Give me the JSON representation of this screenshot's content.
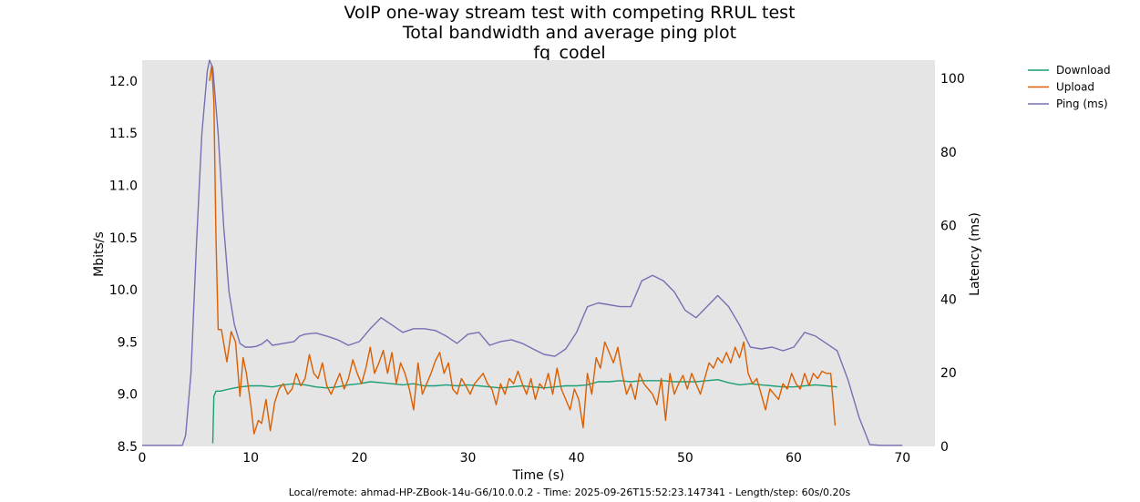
{
  "chart_data": {
    "type": "line",
    "title_lines": [
      "VoIP one-way stream test with competing RRUL test",
      "Total bandwidth and average ping plot",
      "fq_codel"
    ],
    "xlabel": "Time (s)",
    "ylabel": "Mbits/s",
    "y2label": "Latency (ms)",
    "xlim": [
      0,
      73
    ],
    "ylim": [
      8.5,
      12.2
    ],
    "y2lim": [
      0,
      105
    ],
    "xticks": [
      0,
      10,
      20,
      30,
      40,
      50,
      60,
      70
    ],
    "yticks": [
      8.5,
      9.0,
      9.5,
      10.0,
      10.5,
      11.0,
      11.5,
      12.0
    ],
    "y2ticks": [
      0,
      20,
      40,
      60,
      80,
      100
    ],
    "grid": false,
    "background": "#e5e5e5",
    "legend_position": "outside-top-right",
    "series": [
      {
        "name": "Download",
        "axis": "left",
        "color": "#1b9e77",
        "points": [
          [
            6.5,
            8.53
          ],
          [
            6.6,
            8.98
          ],
          [
            6.8,
            9.03
          ],
          [
            7.2,
            9.03
          ],
          [
            8,
            9.05
          ],
          [
            9,
            9.07
          ],
          [
            10,
            9.08
          ],
          [
            11,
            9.08
          ],
          [
            12,
            9.07
          ],
          [
            13,
            9.09
          ],
          [
            14,
            9.1
          ],
          [
            15,
            9.09
          ],
          [
            16,
            9.07
          ],
          [
            17,
            9.06
          ],
          [
            18,
            9.07
          ],
          [
            19,
            9.09
          ],
          [
            20,
            9.1
          ],
          [
            21,
            9.12
          ],
          [
            22,
            9.11
          ],
          [
            23,
            9.1
          ],
          [
            24,
            9.09
          ],
          [
            25,
            9.1
          ],
          [
            26,
            9.08
          ],
          [
            27,
            9.08
          ],
          [
            28,
            9.09
          ],
          [
            29,
            9.08
          ],
          [
            30,
            9.09
          ],
          [
            31,
            9.08
          ],
          [
            32,
            9.07
          ],
          [
            33,
            9.06
          ],
          [
            34,
            9.07
          ],
          [
            35,
            9.08
          ],
          [
            36,
            9.07
          ],
          [
            37,
            9.06
          ],
          [
            38,
            9.07
          ],
          [
            39,
            9.08
          ],
          [
            40,
            9.08
          ],
          [
            41,
            9.09
          ],
          [
            42,
            9.12
          ],
          [
            43,
            9.12
          ],
          [
            44,
            9.13
          ],
          [
            45,
            9.12
          ],
          [
            46,
            9.13
          ],
          [
            47,
            9.13
          ],
          [
            48,
            9.13
          ],
          [
            49,
            9.12
          ],
          [
            50,
            9.12
          ],
          [
            51,
            9.12
          ],
          [
            52,
            9.13
          ],
          [
            53,
            9.14
          ],
          [
            54,
            9.11
          ],
          [
            55,
            9.09
          ],
          [
            56,
            9.1
          ],
          [
            57,
            9.09
          ],
          [
            58,
            9.08
          ],
          [
            59,
            9.07
          ],
          [
            60,
            9.07
          ],
          [
            61,
            9.08
          ],
          [
            62,
            9.09
          ],
          [
            63,
            9.08
          ],
          [
            64,
            9.07
          ]
        ]
      },
      {
        "name": "Upload",
        "axis": "left",
        "color": "#d95f02",
        "points": [
          [
            6.2,
            12.0
          ],
          [
            6.4,
            12.15
          ],
          [
            6.6,
            11.8
          ],
          [
            6.8,
            10.5
          ],
          [
            7.0,
            9.62
          ],
          [
            7.3,
            9.62
          ],
          [
            7.6,
            9.43
          ],
          [
            7.8,
            9.31
          ],
          [
            8.2,
            9.6
          ],
          [
            8.6,
            9.5
          ],
          [
            9.0,
            8.98
          ],
          [
            9.3,
            9.35
          ],
          [
            9.6,
            9.2
          ],
          [
            10.0,
            8.9
          ],
          [
            10.3,
            8.62
          ],
          [
            10.7,
            8.75
          ],
          [
            11.0,
            8.72
          ],
          [
            11.4,
            8.95
          ],
          [
            11.8,
            8.65
          ],
          [
            12.2,
            8.92
          ],
          [
            12.6,
            9.05
          ],
          [
            13.0,
            9.1
          ],
          [
            13.4,
            9.0
          ],
          [
            13.8,
            9.05
          ],
          [
            14.2,
            9.2
          ],
          [
            14.6,
            9.08
          ],
          [
            15.0,
            9.15
          ],
          [
            15.4,
            9.38
          ],
          [
            15.8,
            9.2
          ],
          [
            16.2,
            9.15
          ],
          [
            16.6,
            9.3
          ],
          [
            17.0,
            9.08
          ],
          [
            17.4,
            9.0
          ],
          [
            17.8,
            9.1
          ],
          [
            18.2,
            9.2
          ],
          [
            18.6,
            9.05
          ],
          [
            19.0,
            9.15
          ],
          [
            19.4,
            9.33
          ],
          [
            19.8,
            9.2
          ],
          [
            20.2,
            9.1
          ],
          [
            20.6,
            9.25
          ],
          [
            21.0,
            9.45
          ],
          [
            21.4,
            9.2
          ],
          [
            21.8,
            9.3
          ],
          [
            22.2,
            9.42
          ],
          [
            22.6,
            9.2
          ],
          [
            23.0,
            9.4
          ],
          [
            23.4,
            9.1
          ],
          [
            23.8,
            9.3
          ],
          [
            24.2,
            9.2
          ],
          [
            24.6,
            9.05
          ],
          [
            25.0,
            8.85
          ],
          [
            25.4,
            9.3
          ],
          [
            25.8,
            9.0
          ],
          [
            26.2,
            9.1
          ],
          [
            26.6,
            9.2
          ],
          [
            27.0,
            9.32
          ],
          [
            27.4,
            9.4
          ],
          [
            27.8,
            9.2
          ],
          [
            28.2,
            9.3
          ],
          [
            28.6,
            9.05
          ],
          [
            29.0,
            9.0
          ],
          [
            29.4,
            9.15
          ],
          [
            29.8,
            9.08
          ],
          [
            30.2,
            9.0
          ],
          [
            30.6,
            9.1
          ],
          [
            31.0,
            9.15
          ],
          [
            31.4,
            9.2
          ],
          [
            31.8,
            9.1
          ],
          [
            32.2,
            9.05
          ],
          [
            32.6,
            8.9
          ],
          [
            33.0,
            9.1
          ],
          [
            33.4,
            9.0
          ],
          [
            33.8,
            9.15
          ],
          [
            34.2,
            9.1
          ],
          [
            34.6,
            9.22
          ],
          [
            35.0,
            9.1
          ],
          [
            35.4,
            9.0
          ],
          [
            35.8,
            9.15
          ],
          [
            36.2,
            8.95
          ],
          [
            36.6,
            9.1
          ],
          [
            37.0,
            9.05
          ],
          [
            37.4,
            9.2
          ],
          [
            37.8,
            9.0
          ],
          [
            38.2,
            9.25
          ],
          [
            38.6,
            9.05
          ],
          [
            39.0,
            8.95
          ],
          [
            39.4,
            8.85
          ],
          [
            39.8,
            9.05
          ],
          [
            40.2,
            8.95
          ],
          [
            40.6,
            8.68
          ],
          [
            41.0,
            9.2
          ],
          [
            41.4,
            9.0
          ],
          [
            41.8,
            9.35
          ],
          [
            42.2,
            9.25
          ],
          [
            42.6,
            9.5
          ],
          [
            43.0,
            9.4
          ],
          [
            43.4,
            9.3
          ],
          [
            43.8,
            9.45
          ],
          [
            44.2,
            9.2
          ],
          [
            44.6,
            9.0
          ],
          [
            45.0,
            9.1
          ],
          [
            45.4,
            8.95
          ],
          [
            45.8,
            9.2
          ],
          [
            46.2,
            9.1
          ],
          [
            46.6,
            9.05
          ],
          [
            47.0,
            9.0
          ],
          [
            47.4,
            8.9
          ],
          [
            47.8,
            9.15
          ],
          [
            48.2,
            8.75
          ],
          [
            48.6,
            9.2
          ],
          [
            49.0,
            9.0
          ],
          [
            49.4,
            9.1
          ],
          [
            49.8,
            9.18
          ],
          [
            50.2,
            9.05
          ],
          [
            50.6,
            9.2
          ],
          [
            51.0,
            9.1
          ],
          [
            51.4,
            9.0
          ],
          [
            51.8,
            9.15
          ],
          [
            52.2,
            9.3
          ],
          [
            52.6,
            9.25
          ],
          [
            53.0,
            9.35
          ],
          [
            53.4,
            9.3
          ],
          [
            53.8,
            9.4
          ],
          [
            54.2,
            9.3
          ],
          [
            54.6,
            9.45
          ],
          [
            55.0,
            9.35
          ],
          [
            55.4,
            9.5
          ],
          [
            55.8,
            9.2
          ],
          [
            56.2,
            9.1
          ],
          [
            56.6,
            9.15
          ],
          [
            57.0,
            9.0
          ],
          [
            57.4,
            8.85
          ],
          [
            57.8,
            9.05
          ],
          [
            58.2,
            9.0
          ],
          [
            58.6,
            8.95
          ],
          [
            59.0,
            9.1
          ],
          [
            59.4,
            9.05
          ],
          [
            59.8,
            9.2
          ],
          [
            60.2,
            9.1
          ],
          [
            60.6,
            9.05
          ],
          [
            61.0,
            9.2
          ],
          [
            61.4,
            9.08
          ],
          [
            61.8,
            9.2
          ],
          [
            62.2,
            9.15
          ],
          [
            62.6,
            9.22
          ],
          [
            63.0,
            9.2
          ],
          [
            63.4,
            9.2
          ],
          [
            63.8,
            8.7
          ]
        ]
      },
      {
        "name": "Ping (ms)",
        "axis": "right",
        "color": "#7570b3",
        "points": [
          [
            0,
            0.3
          ],
          [
            2,
            0.3
          ],
          [
            3.7,
            0.3
          ],
          [
            4.0,
            3
          ],
          [
            4.5,
            20
          ],
          [
            5.0,
            55
          ],
          [
            5.5,
            85
          ],
          [
            6.0,
            102
          ],
          [
            6.2,
            105
          ],
          [
            6.5,
            103
          ],
          [
            7.0,
            85
          ],
          [
            7.5,
            60
          ],
          [
            8.0,
            42
          ],
          [
            8.5,
            33
          ],
          [
            9.0,
            28
          ],
          [
            9.5,
            27
          ],
          [
            10,
            27
          ],
          [
            10.5,
            27.2
          ],
          [
            11,
            27.8
          ],
          [
            11.5,
            29
          ],
          [
            12,
            27.5
          ],
          [
            13,
            28
          ],
          [
            14,
            28.5
          ],
          [
            14.5,
            30
          ],
          [
            15,
            30.5
          ],
          [
            16,
            30.8
          ],
          [
            17,
            30
          ],
          [
            18,
            29
          ],
          [
            19,
            27.5
          ],
          [
            20,
            28.5
          ],
          [
            21,
            32
          ],
          [
            22,
            35
          ],
          [
            23,
            33
          ],
          [
            24,
            31
          ],
          [
            25,
            32
          ],
          [
            26,
            32
          ],
          [
            27,
            31.5
          ],
          [
            28,
            30
          ],
          [
            29,
            28
          ],
          [
            30,
            30.5
          ],
          [
            31,
            31
          ],
          [
            32,
            27.5
          ],
          [
            33,
            28.5
          ],
          [
            34,
            29
          ],
          [
            35,
            28
          ],
          [
            36,
            26.5
          ],
          [
            37,
            25
          ],
          [
            38,
            24.5
          ],
          [
            39,
            26.5
          ],
          [
            40,
            31
          ],
          [
            41,
            38
          ],
          [
            42,
            39
          ],
          [
            43,
            38.5
          ],
          [
            44,
            38
          ],
          [
            45,
            38
          ],
          [
            46,
            45
          ],
          [
            47,
            46.5
          ],
          [
            48,
            45
          ],
          [
            49,
            42
          ],
          [
            50,
            37
          ],
          [
            51,
            35
          ],
          [
            52,
            38
          ],
          [
            53,
            41
          ],
          [
            54,
            38
          ],
          [
            55,
            33
          ],
          [
            56,
            27
          ],
          [
            57,
            26.5
          ],
          [
            58,
            27
          ],
          [
            59,
            26
          ],
          [
            60,
            27
          ],
          [
            61,
            31
          ],
          [
            62,
            30
          ],
          [
            63,
            28
          ],
          [
            64,
            26
          ],
          [
            65,
            18
          ],
          [
            66,
            8
          ],
          [
            67,
            0.5
          ],
          [
            68,
            0.3
          ],
          [
            70,
            0.3
          ]
        ]
      }
    ]
  },
  "footer": "Local/remote: ahmad-HP-ZBook-14u-G6/10.0.0.2 - Time: 2025-09-26T15:52:23.147341 - Length/step: 60s/0.20s"
}
